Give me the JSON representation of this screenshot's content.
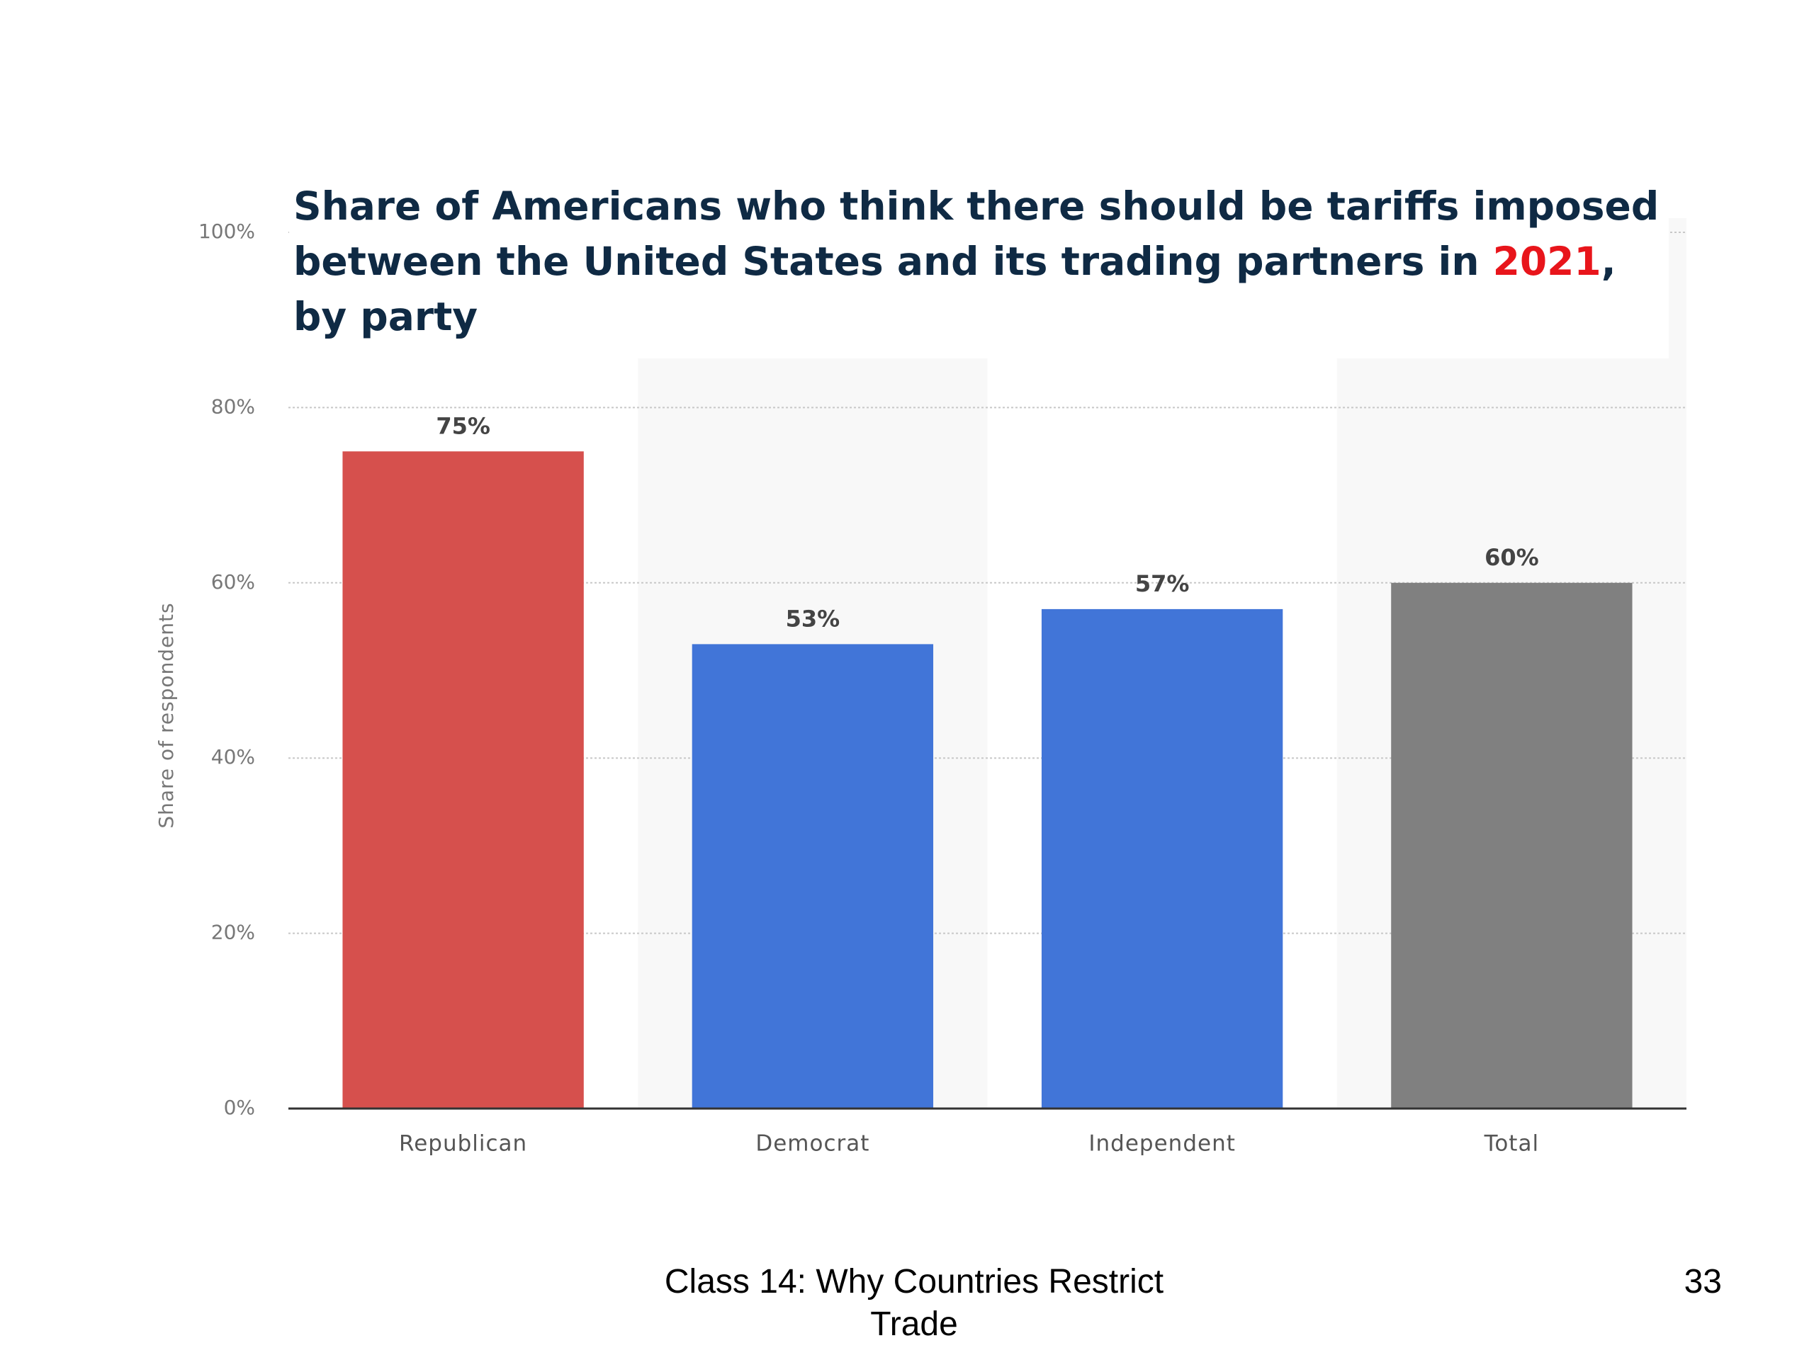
{
  "chart_data": {
    "type": "bar",
    "title_parts": [
      {
        "text": "Share of Americans who think there should be tariffs imposed between the United States and its trading partners in ",
        "color": "#0f2a44"
      },
      {
        "text": "2021",
        "color": "#e8151b"
      },
      {
        "text": ", by party",
        "color": "#0f2a44"
      }
    ],
    "y_label": "Share of respondents",
    "categories": [
      "Republican",
      "Democrat",
      "Independent",
      "Total"
    ],
    "values": [
      75,
      53,
      57,
      60
    ],
    "value_labels": [
      "75%",
      "53%",
      "57%",
      "60%"
    ],
    "colors": [
      "#d6504d",
      "#4175d8",
      "#4175d8",
      "#808080"
    ],
    "ylim": [
      0,
      100
    ],
    "yticks": [
      {
        "value": 0,
        "label": "0%"
      },
      {
        "value": 20,
        "label": "20%"
      },
      {
        "value": 40,
        "label": "40%"
      },
      {
        "value": 60,
        "label": "60%"
      },
      {
        "value": 80,
        "label": "80%"
      },
      {
        "value": 100,
        "label": "100%"
      }
    ],
    "grid": true
  },
  "footer": {
    "text": "Class 14:  Why Countries Restrict Trade",
    "page": 33
  }
}
